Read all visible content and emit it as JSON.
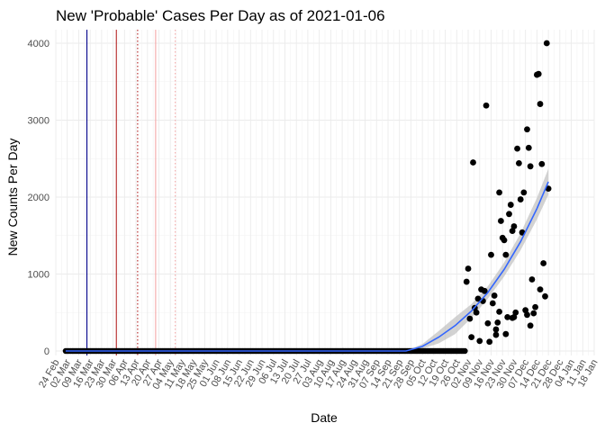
{
  "chart_data": {
    "type": "scatter",
    "title": "New 'Probable' Cases Per Day as of 2021-01-06",
    "xlabel": "Date",
    "ylabel": "New Counts Per Day",
    "xlim": [
      "2020-02-24",
      "2021-01-18"
    ],
    "ylim": [
      0,
      4000
    ],
    "grid": true,
    "x_ticks": [
      "2020-02-24",
      "2020-03-02",
      "2020-03-09",
      "2020-03-16",
      "2020-03-23",
      "2020-03-30",
      "2020-04-06",
      "2020-04-13",
      "2020-04-20",
      "2020-04-27",
      "2020-05-04",
      "2020-05-11",
      "2020-05-18",
      "2020-05-25",
      "2020-06-01",
      "2020-06-08",
      "2020-06-15",
      "2020-06-22",
      "2020-06-29",
      "2020-07-06",
      "2020-07-13",
      "2020-07-20",
      "2020-07-27",
      "2020-08-03",
      "2020-08-10",
      "2020-08-17",
      "2020-08-24",
      "2020-08-31",
      "2020-09-07",
      "2020-09-14",
      "2020-09-21",
      "2020-09-28",
      "2020-10-05",
      "2020-10-12",
      "2020-10-19",
      "2020-10-26",
      "2020-11-02",
      "2020-11-09",
      "2020-11-16",
      "2020-11-23",
      "2020-11-30",
      "2020-12-07",
      "2020-12-14",
      "2020-12-21",
      "2020-12-28",
      "2021-01-04",
      "2021-01-11",
      "2021-01-18"
    ],
    "x_tick_labels": [
      "24 Feb",
      "02 Mar",
      "09 Mar",
      "16 Mar",
      "23 Mar",
      "30 Mar",
      "06 Apr",
      "13 Apr",
      "20 Apr",
      "27 Apr",
      "04 May",
      "11 May",
      "18 May",
      "25 May",
      "01 Jun",
      "08 Jun",
      "15 Jun",
      "22 Jun",
      "29 Jun",
      "06 Jul",
      "13 Jul",
      "20 Jul",
      "27 Jul",
      "03 Aug",
      "10 Aug",
      "17 Aug",
      "24 Aug",
      "31 Aug",
      "07 Sep",
      "14 Sep",
      "21 Sep",
      "28 Sep",
      "05 Oct",
      "12 Oct",
      "19 Oct",
      "26 Oct",
      "02 Nov",
      "09 Nov",
      "16 Nov",
      "23 Nov",
      "30 Nov",
      "07 Dec",
      "14 Dec",
      "21 Dec",
      "28 Dec",
      "04 Jan",
      "11 Jan",
      "18 Jan"
    ],
    "y_ticks": [
      0,
      1000,
      2000,
      3000,
      4000
    ],
    "y_tick_labels": [
      "0",
      "1000",
      "2000",
      "3000",
      "4000"
    ],
    "zero_range": [
      "2020-03-01",
      "2020-10-31"
    ],
    "points": [
      {
        "x": "2020-11-01",
        "y": 900
      },
      {
        "x": "2020-11-02",
        "y": 1070
      },
      {
        "x": "2020-11-03",
        "y": 420
      },
      {
        "x": "2020-11-04",
        "y": 180
      },
      {
        "x": "2020-11-05",
        "y": 2450
      },
      {
        "x": "2020-11-06",
        "y": 560
      },
      {
        "x": "2020-11-07",
        "y": 500
      },
      {
        "x": "2020-11-08",
        "y": 680
      },
      {
        "x": "2020-11-09",
        "y": 130
      },
      {
        "x": "2020-11-10",
        "y": 800
      },
      {
        "x": "2020-11-11",
        "y": 650
      },
      {
        "x": "2020-11-12",
        "y": 780
      },
      {
        "x": "2020-11-13",
        "y": 3190
      },
      {
        "x": "2020-11-14",
        "y": 360
      },
      {
        "x": "2020-11-15",
        "y": 120
      },
      {
        "x": "2020-11-16",
        "y": 1250
      },
      {
        "x": "2020-11-17",
        "y": 620
      },
      {
        "x": "2020-11-18",
        "y": 720
      },
      {
        "x": "2020-11-19",
        "y": 210
      },
      {
        "x": "2020-11-20",
        "y": 370
      },
      {
        "x": "2020-11-21",
        "y": 2060
      },
      {
        "x": "2020-11-22",
        "y": 1690
      },
      {
        "x": "2020-11-23",
        "y": 1470
      },
      {
        "x": "2020-11-24",
        "y": 1440
      },
      {
        "x": "2020-11-25",
        "y": 1250
      },
      {
        "x": "2020-11-26",
        "y": 440
      },
      {
        "x": "2020-11-27",
        "y": 1780
      },
      {
        "x": "2020-11-28",
        "y": 1900
      },
      {
        "x": "2020-11-29",
        "y": 1560
      },
      {
        "x": "2020-11-30",
        "y": 1620
      },
      {
        "x": "2020-12-01",
        "y": 500
      },
      {
        "x": "2020-12-02",
        "y": 2630
      },
      {
        "x": "2020-12-03",
        "y": 2440
      },
      {
        "x": "2020-12-04",
        "y": 1970
      },
      {
        "x": "2020-12-05",
        "y": 1540
      },
      {
        "x": "2020-12-06",
        "y": 2060
      },
      {
        "x": "2020-12-07",
        "y": 530
      },
      {
        "x": "2020-12-08",
        "y": 2880
      },
      {
        "x": "2020-12-09",
        "y": 2640
      },
      {
        "x": "2020-12-10",
        "y": 2400
      },
      {
        "x": "2020-12-11",
        "y": 930
      },
      {
        "x": "2020-12-12",
        "y": 490
      },
      {
        "x": "2020-12-13",
        "y": 570
      },
      {
        "x": "2020-12-14",
        "y": 3590
      },
      {
        "x": "2020-12-15",
        "y": 3600
      },
      {
        "x": "2020-12-16",
        "y": 3210
      },
      {
        "x": "2020-12-17",
        "y": 2430
      },
      {
        "x": "2020-12-18",
        "y": 1140
      },
      {
        "x": "2020-12-19",
        "y": 710
      },
      {
        "x": "2020-12-20",
        "y": 4000
      },
      {
        "x": "2020-12-21",
        "y": 2110
      },
      {
        "x": "2020-11-29",
        "y": 430
      },
      {
        "x": "2020-11-30",
        "y": 440
      },
      {
        "x": "2020-11-25",
        "y": 220
      },
      {
        "x": "2020-11-19",
        "y": 280
      },
      {
        "x": "2020-11-21",
        "y": 510
      },
      {
        "x": "2020-12-08",
        "y": 470
      },
      {
        "x": "2020-12-16",
        "y": 800
      },
      {
        "x": "2020-12-10",
        "y": 330
      }
    ],
    "trend": {
      "x": [
        "2020-03-01",
        "2020-09-25",
        "2020-10-05",
        "2020-10-15",
        "2020-10-25",
        "2020-11-04",
        "2020-11-14",
        "2020-11-24",
        "2020-12-04",
        "2020-12-14",
        "2020-12-21"
      ],
      "y": [
        0,
        0,
        60,
        180,
        330,
        520,
        760,
        1060,
        1420,
        1850,
        2200
      ],
      "ci_halfwidth": [
        0,
        0,
        30,
        80,
        110,
        90,
        80,
        90,
        110,
        140,
        170
      ]
    },
    "vlines": [
      {
        "x": "2020-03-14",
        "color": "#00008b",
        "style": "solid"
      },
      {
        "x": "2020-04-01",
        "color": "#b22222",
        "style": "solid"
      },
      {
        "x": "2020-04-14",
        "color": "#b22222",
        "style": "dotted"
      },
      {
        "x": "2020-04-25",
        "color": "#f4a7a7",
        "style": "solid"
      },
      {
        "x": "2020-05-07",
        "color": "#f4a7a7",
        "style": "dotted"
      }
    ],
    "colors": {
      "points": "#000000",
      "trend": "#3366ff",
      "ribbon": "#bfbfbf",
      "background": "#ffffff"
    }
  }
}
